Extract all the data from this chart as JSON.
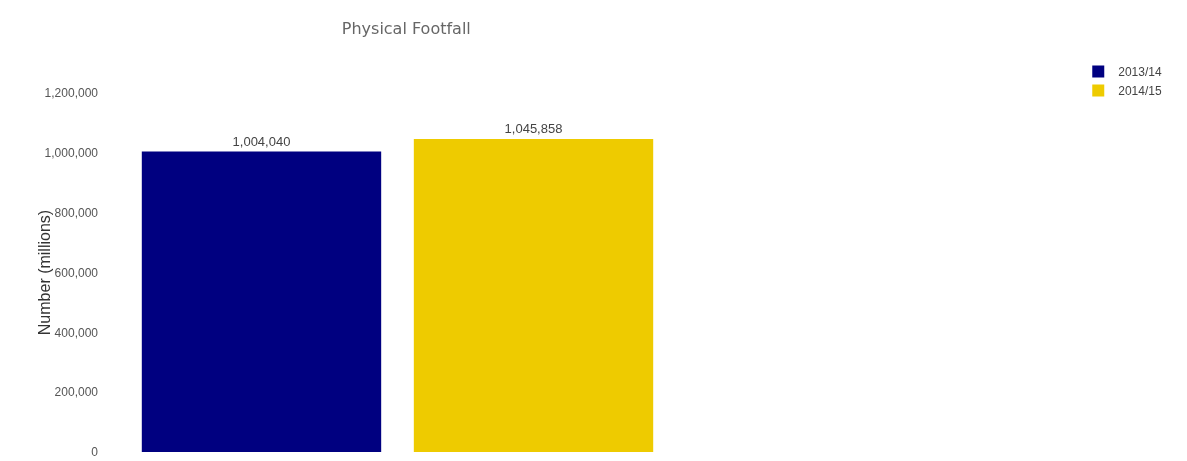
{
  "chart_data": {
    "type": "bar",
    "title": "Physical Footfall",
    "ylabel": "Number (millions)",
    "categories": [
      null
    ],
    "series": [
      {
        "name": "2013/14",
        "color": "#000080",
        "values": [
          1004040
        ],
        "value_labels": [
          "1,004,040"
        ]
      },
      {
        "name": "2014/15",
        "color": "#eecb00",
        "values": [
          1045858
        ],
        "value_labels": [
          "1,045,858"
        ]
      }
    ],
    "ylim": [
      0,
      1200000
    ],
    "yticks": [
      {
        "value": 0,
        "label": "0"
      },
      {
        "value": 200000,
        "label": "200,000"
      },
      {
        "value": 400000,
        "label": "400,000"
      },
      {
        "value": 600000,
        "label": "600,000"
      },
      {
        "value": 800000,
        "label": "800,000"
      },
      {
        "value": 1000000,
        "label": "1,000,000"
      },
      {
        "value": 1200000,
        "label": "1,200,000"
      }
    ],
    "grid": false,
    "legend": "top right"
  }
}
